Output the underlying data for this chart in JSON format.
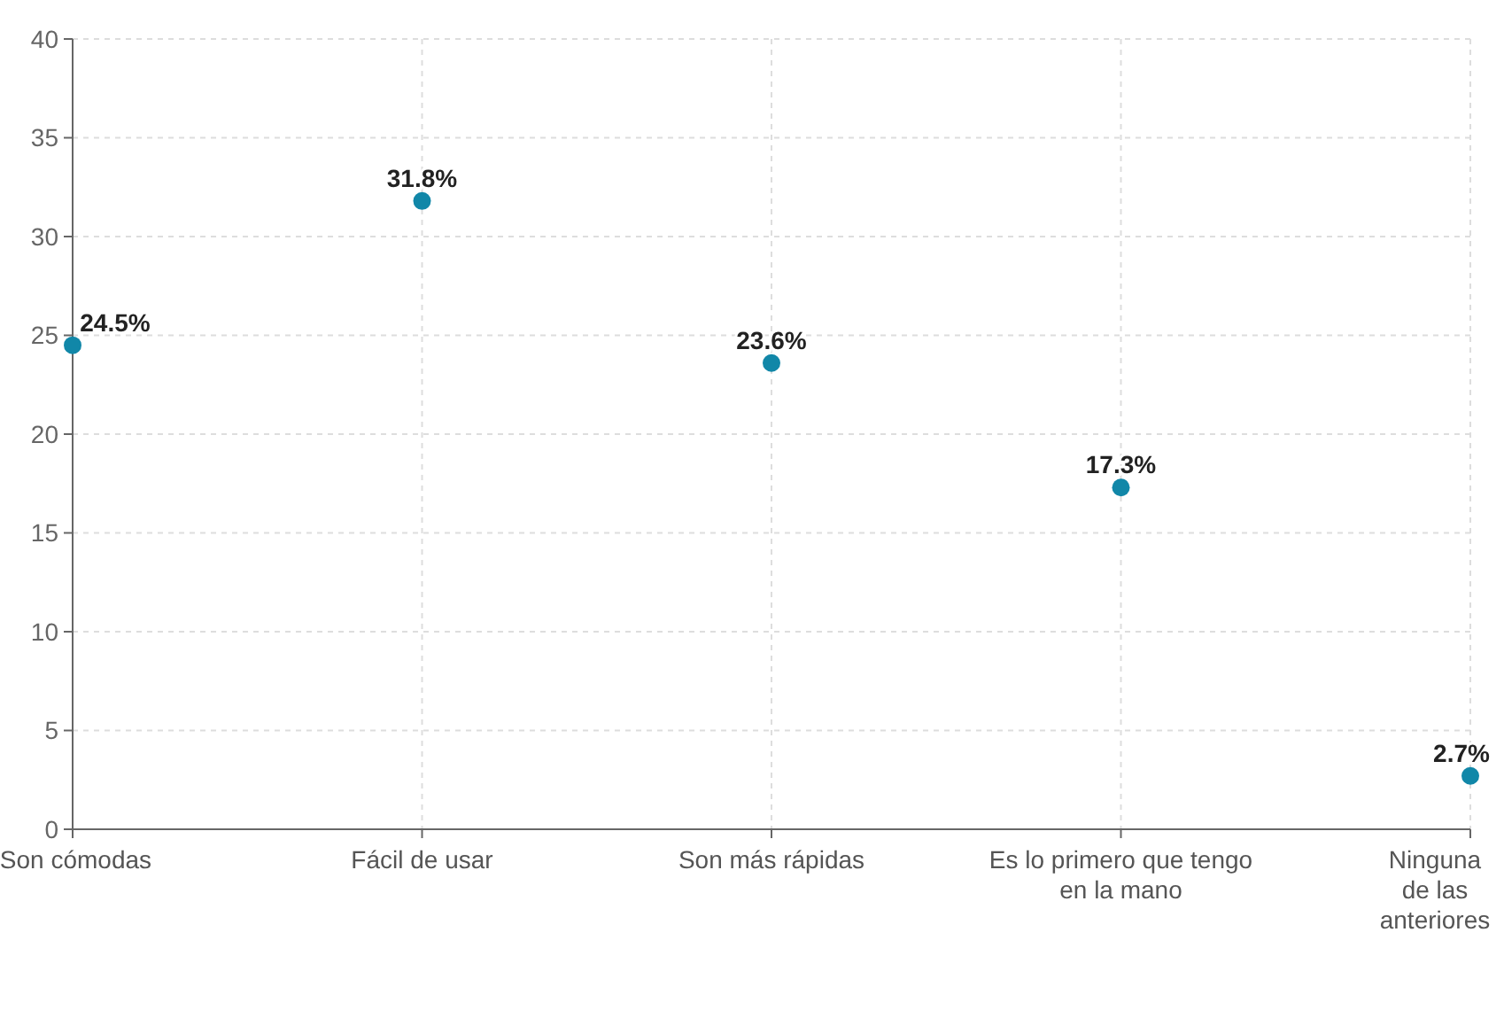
{
  "chart_data": {
    "type": "scatter",
    "categories": [
      "Son cómodas",
      "Fácil de usar",
      "Son más rápidas",
      "Es lo primero que tengo en la mano",
      "Ninguna de las anteriores"
    ],
    "series": [
      {
        "color": "#1187a8",
        "values": [
          24.5,
          31.8,
          23.6,
          17.3,
          2.7
        ],
        "value_labels": [
          "24.5%",
          "31.8%",
          "23.6%",
          "17.3%",
          "2.7%"
        ]
      }
    ],
    "ylim": [
      0,
      40
    ],
    "yticks": [
      0,
      5,
      10,
      15,
      20,
      25,
      30,
      35,
      40
    ],
    "grid": true,
    "marker": "circle"
  }
}
